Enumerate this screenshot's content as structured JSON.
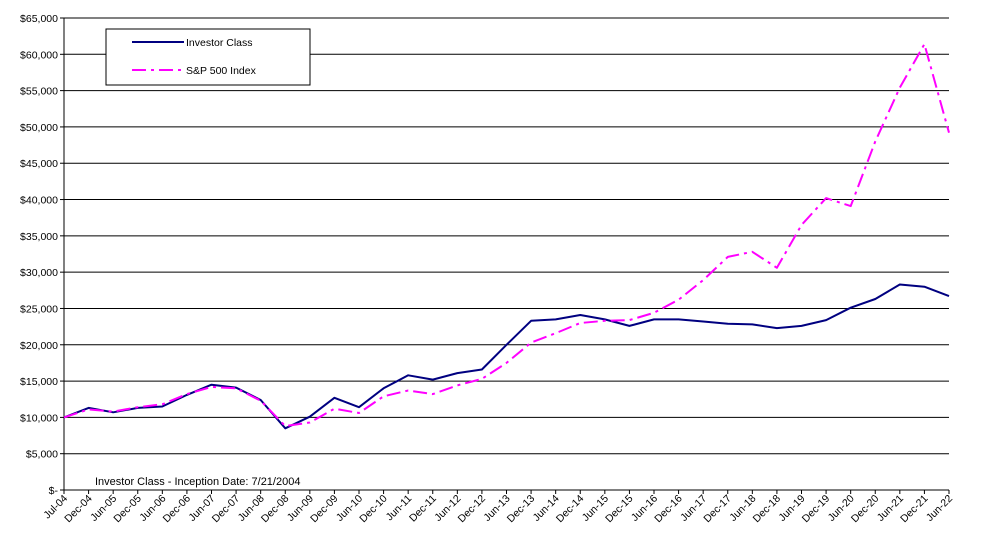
{
  "chart_data": {
    "type": "line",
    "title": "",
    "xlabel": "",
    "ylabel": "",
    "ylim": [
      0,
      65000
    ],
    "y_ticks": [
      0,
      5000,
      10000,
      15000,
      20000,
      25000,
      30000,
      35000,
      40000,
      45000,
      50000,
      55000,
      60000,
      65000
    ],
    "y_tick_labels": [
      "$-",
      "$5,000",
      "$10,000",
      "$15,000",
      "$20,000",
      "$25,000",
      "$30,000",
      "$35,000",
      "$40,000",
      "$45,000",
      "$50,000",
      "$55,000",
      "$60,000",
      "$65,000"
    ],
    "grid": "horizontal",
    "legend_position": "top-left",
    "categories": [
      "Jul-04",
      "Dec-04",
      "Jun-05",
      "Dec-05",
      "Jun-06",
      "Dec-06",
      "Jun-07",
      "Dec-07",
      "Jun-08",
      "Dec-08",
      "Jun-09",
      "Dec-09",
      "Jun-10",
      "Dec-10",
      "Jun-11",
      "Dec-11",
      "Jun-12",
      "Dec-12",
      "Jun-13",
      "Dec-13",
      "Jun-14",
      "Dec-14",
      "Jun-15",
      "Dec-15",
      "Jun-16",
      "Dec-16",
      "Jun-17",
      "Dec-17",
      "Jun-18",
      "Dec-18",
      "Jun-19",
      "Dec-19",
      "Jun-20",
      "Dec-20",
      "Jun-21",
      "Dec-21",
      "Jun-22"
    ],
    "series": [
      {
        "name": "Investor Class",
        "color": "#000080",
        "style": "solid",
        "values": [
          10000,
          11300,
          10700,
          11300,
          11500,
          13100,
          14500,
          14100,
          12400,
          8500,
          10100,
          12700,
          11400,
          14000,
          15800,
          15200,
          16100,
          16600,
          20000,
          23300,
          23500,
          24100,
          23500,
          22600,
          23500,
          23500,
          23200,
          22900,
          22800,
          22300,
          22600,
          23400,
          25100,
          26300,
          28300,
          28000,
          26700
        ]
      },
      {
        "name": "S&P 500 Index",
        "color": "#FF00FF",
        "style": "dash-dot",
        "values": [
          10000,
          11100,
          10800,
          11400,
          11800,
          13200,
          14200,
          14000,
          12300,
          8800,
          9300,
          11200,
          10600,
          12900,
          13700,
          13200,
          14400,
          15300,
          17500,
          20300,
          21600,
          23000,
          23300,
          23400,
          24400,
          26200,
          28900,
          32100,
          32800,
          30600,
          36500,
          40200,
          39100,
          48000,
          55400,
          61400,
          49200
        ]
      }
    ],
    "annotation": "Investor Class - Inception Date: 7/21/2004"
  }
}
